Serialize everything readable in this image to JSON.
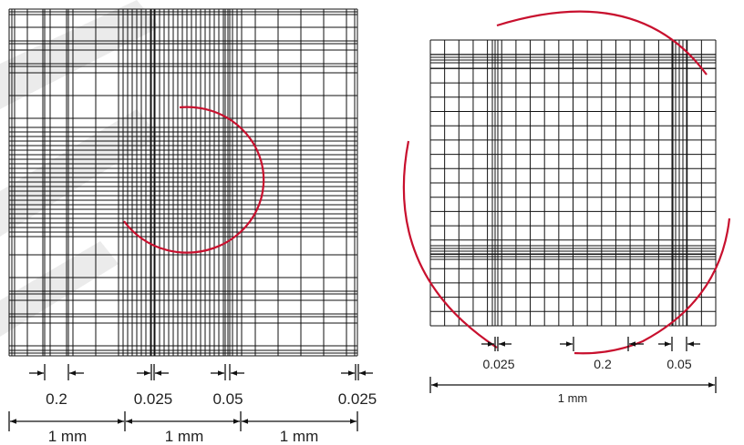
{
  "colors": {
    "grid_line": "#111111",
    "arc": "#c8102e",
    "watermark": "#d6d6d6",
    "text": "#222222"
  },
  "left_figure": {
    "labels": {
      "gap_1": "0.2",
      "gap_2": "0.025",
      "gap_3": "0.05",
      "gap_4": "0.025",
      "span_1": "1 mm",
      "span_2": "1 mm",
      "span_3": "1 mm"
    }
  },
  "right_figure": {
    "labels": {
      "gap_1": "0.025",
      "gap_2": "0.2",
      "gap_3": "0.05",
      "span_1": "1 mm"
    }
  }
}
